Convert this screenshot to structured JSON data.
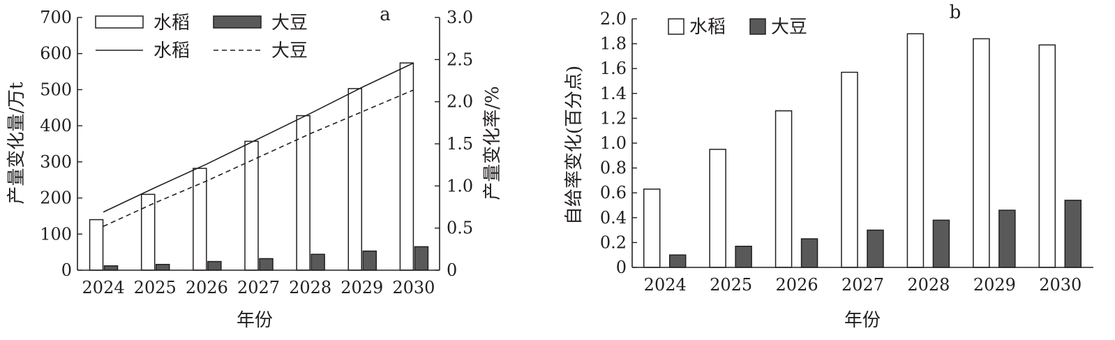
{
  "chart_data": [
    {
      "panel_label": "a",
      "type": "bar",
      "categories": [
        "2024",
        "2025",
        "2026",
        "2027",
        "2028",
        "2029",
        "2030"
      ],
      "xlabel": "年份",
      "ylabel": "产量变化量/万t",
      "ylabel_right": "产量变化率/%",
      "ylim": [
        0,
        700
      ],
      "yticks": [
        "0",
        "100",
        "200",
        "300",
        "400",
        "500",
        "600",
        "700"
      ],
      "ylim_right": [
        0,
        3.0
      ],
      "yticks_right": [
        "0",
        "0.5",
        "1.0",
        "1.5",
        "2.0",
        "2.5",
        "3.0"
      ],
      "series": [
        {
          "name": "水稻",
          "kind": "bar",
          "axis": "left",
          "fill": "#ffffff",
          "values": [
            140,
            210,
            282,
            357,
            428,
            503,
            574
          ]
        },
        {
          "name": "大豆",
          "kind": "bar",
          "axis": "left",
          "fill": "#595959",
          "values": [
            12,
            16,
            24,
            32,
            44,
            53,
            65
          ]
        },
        {
          "name": "水稻",
          "kind": "line",
          "axis": "right",
          "dash": "solid",
          "values": [
            0.69,
            0.98,
            1.26,
            1.56,
            1.86,
            2.17,
            2.46
          ]
        },
        {
          "name": "大豆",
          "kind": "line",
          "axis": "right",
          "dash": "dashed",
          "values": [
            0.52,
            0.8,
            1.06,
            1.34,
            1.62,
            1.88,
            2.14
          ]
        }
      ],
      "legend": [
        "水稻",
        "大豆",
        "水稻",
        "大豆"
      ],
      "legend_position": "top-left",
      "grid": false
    },
    {
      "panel_label": "b",
      "type": "bar",
      "categories": [
        "2024",
        "2025",
        "2026",
        "2027",
        "2028",
        "2029",
        "2030"
      ],
      "xlabel": "年份",
      "ylabel": "自给率变化(百分点)",
      "ylim": [
        0,
        2.0
      ],
      "yticks": [
        "0",
        "0.2",
        "0.4",
        "0.6",
        "0.8",
        "1.0",
        "1.2",
        "1.4",
        "1.6",
        "1.8",
        "2.0"
      ],
      "series": [
        {
          "name": "水稻",
          "kind": "bar",
          "fill": "#ffffff",
          "values": [
            0.63,
            0.95,
            1.26,
            1.57,
            1.88,
            1.84,
            1.79
          ]
        },
        {
          "name": "大豆",
          "kind": "bar",
          "fill": "#595959",
          "values": [
            0.1,
            0.17,
            0.23,
            0.3,
            0.38,
            0.46,
            0.54
          ]
        }
      ],
      "legend": [
        "水稻",
        "大豆"
      ],
      "legend_position": "top-left",
      "grid": false
    }
  ]
}
